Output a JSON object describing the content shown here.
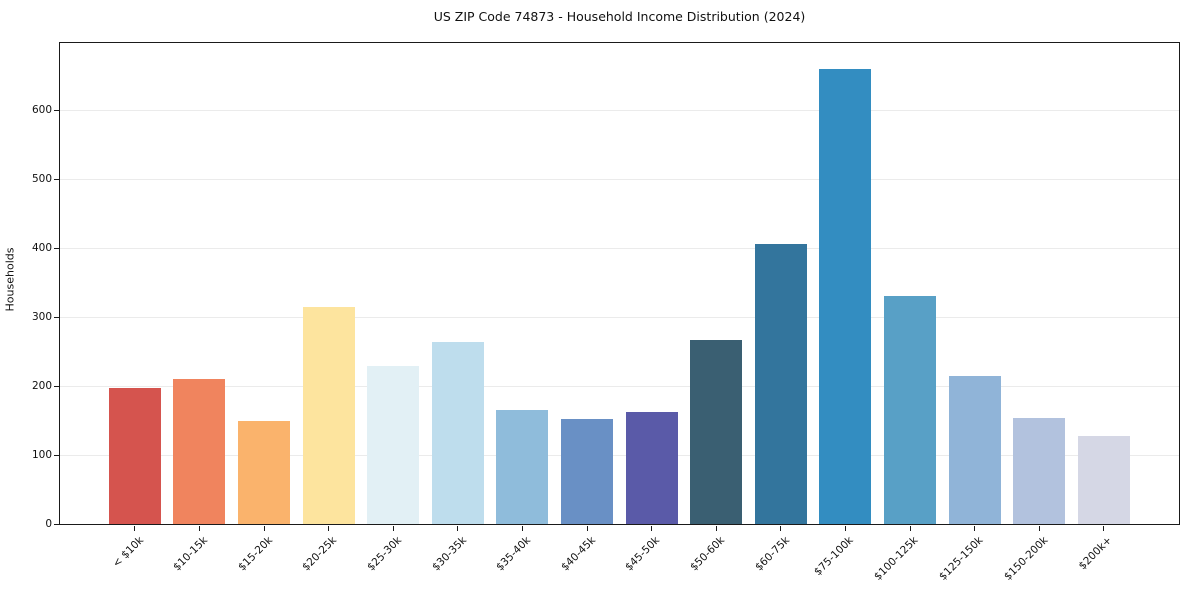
{
  "chart_data": {
    "type": "bar",
    "title": "US ZIP Code 74873 - Household Income Distribution (2024)",
    "xlabel": "",
    "ylabel": "Households",
    "categories": [
      "< $10k",
      "$10-15k",
      "$15-20k",
      "$20-25k",
      "$25-30k",
      "$30-35k",
      "$35-40k",
      "$40-45k",
      "$45-50k",
      "$50-60k",
      "$60-75k",
      "$75-100k",
      "$100-125k",
      "$125-150k",
      "$150-200k",
      "$200k+"
    ],
    "values": [
      197,
      210,
      149,
      315,
      229,
      264,
      166,
      152,
      163,
      267,
      407,
      660,
      331,
      215,
      154,
      128
    ],
    "bar_colors": [
      "#d5544e",
      "#f0845e",
      "#fab36c",
      "#fde49e",
      "#e2f0f5",
      "#bedded",
      "#8fbcdb",
      "#6990c5",
      "#5a5aa8",
      "#3a5f72",
      "#33759d",
      "#338dc1",
      "#58a0c6",
      "#90b4d8",
      "#b2c2de",
      "#d5d7e5"
    ],
    "yticks": [
      0,
      100,
      200,
      300,
      400,
      500,
      600
    ],
    "ylim": [
      0,
      698
    ],
    "grid": "horizontal",
    "gridline_color": "#ebebeb",
    "spine_color": "#1a1a1a",
    "legend": "none",
    "bar_width_ratio": 0.8
  }
}
